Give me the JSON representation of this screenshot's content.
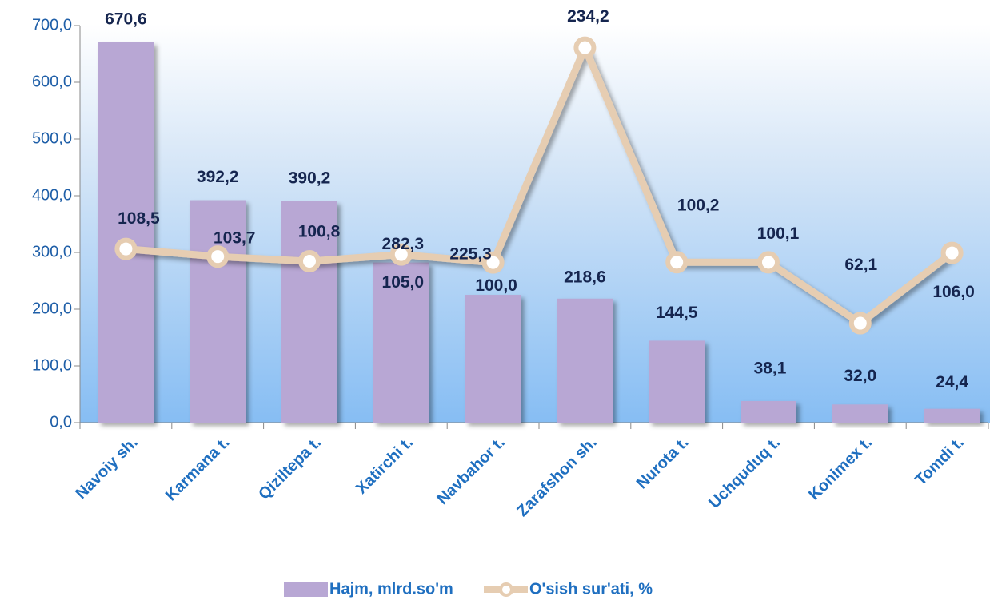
{
  "chart_data": {
    "type": "bar-line",
    "categories": [
      "Navoiy sh.",
      "Karmana t.",
      "Qiziltepa t.",
      "Xatirchi t.",
      "Navbahor t.",
      "Zarafshon sh.",
      "Nurota t.",
      "Uchquduq t.",
      "Konimex t.",
      "Tomdi t."
    ],
    "series": [
      {
        "name": "Hajm, mlrd.so'm",
        "color": "#b8a7d4",
        "type": "bar",
        "values": [
          670.6,
          392.2,
          390.2,
          282.3,
          225.3,
          218.6,
          144.5,
          38.1,
          32.0,
          24.4
        ],
        "value_labels": [
          "670,6",
          "392,2",
          "390,2",
          "282,3",
          "225,3",
          "218,6",
          "144,5",
          "38,1",
          "32,0",
          "24,4"
        ]
      },
      {
        "name": "O'sish sur'ati, %",
        "color": "#e6cdb2",
        "type": "line",
        "axis": "y2",
        "values": [
          108.5,
          103.7,
          100.8,
          105.0,
          100.0,
          234.2,
          100.2,
          100.1,
          62.1,
          106.0
        ],
        "value_labels": [
          "108,5",
          "103,7",
          "100,8",
          "105,0",
          "100,0",
          "234,2",
          "100,2",
          "100,1",
          "62,1",
          "106,0"
        ]
      }
    ],
    "ylim": [
      0,
      700
    ],
    "yticks": [
      {
        "value": 0,
        "label": "0,0"
      },
      {
        "value": 100,
        "label": "100,0"
      },
      {
        "value": 200,
        "label": "200,0"
      },
      {
        "value": 300,
        "label": "300,0"
      },
      {
        "value": 400,
        "label": "400,0"
      },
      {
        "value": 500,
        "label": "500,0"
      },
      {
        "value": 600,
        "label": "600,0"
      },
      {
        "value": 700,
        "label": "700,0"
      }
    ],
    "y2lim": [
      0,
      248
    ],
    "legend": "bottom"
  }
}
